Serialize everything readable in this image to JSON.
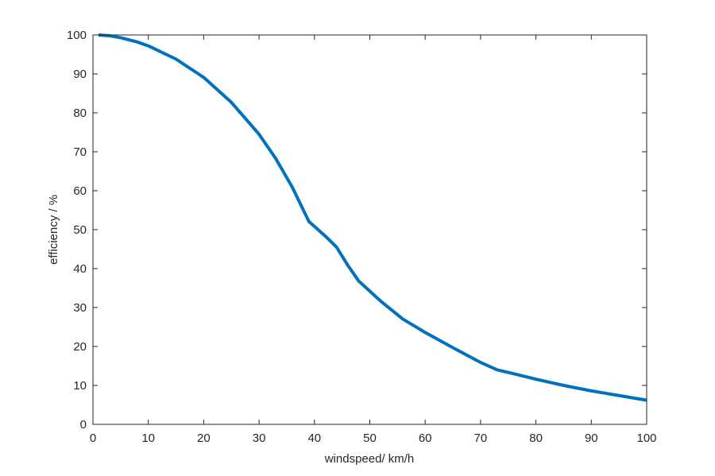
{
  "chart_data": {
    "type": "line",
    "title": "",
    "xlabel": "windspeed/ km/h",
    "ylabel": "efficiency / %",
    "xlim": [
      0,
      100
    ],
    "ylim": [
      0,
      100
    ],
    "xticks": [
      0,
      10,
      20,
      30,
      40,
      50,
      60,
      70,
      80,
      90,
      100
    ],
    "yticks": [
      0,
      10,
      20,
      30,
      40,
      50,
      60,
      70,
      80,
      90,
      100
    ],
    "grid": false,
    "line_color": "#0072BD",
    "series": [
      {
        "x": [
          1,
          3,
          5,
          8,
          10,
          15,
          20,
          25,
          30,
          33,
          36,
          39,
          42,
          44,
          46,
          48,
          52,
          56,
          60,
          65,
          70,
          73,
          76,
          80,
          85,
          90,
          95,
          100
        ],
        "y": [
          100,
          99.8,
          99.3,
          98.2,
          97.2,
          93.8,
          89.1,
          82.7,
          74.5,
          68.3,
          60.9,
          52.1,
          48.3,
          45.5,
          40.9,
          36.8,
          31.6,
          27.0,
          23.6,
          19.7,
          15.9,
          14.0,
          13.0,
          11.6,
          10.0,
          8.6,
          7.4,
          6.2
        ]
      }
    ]
  }
}
